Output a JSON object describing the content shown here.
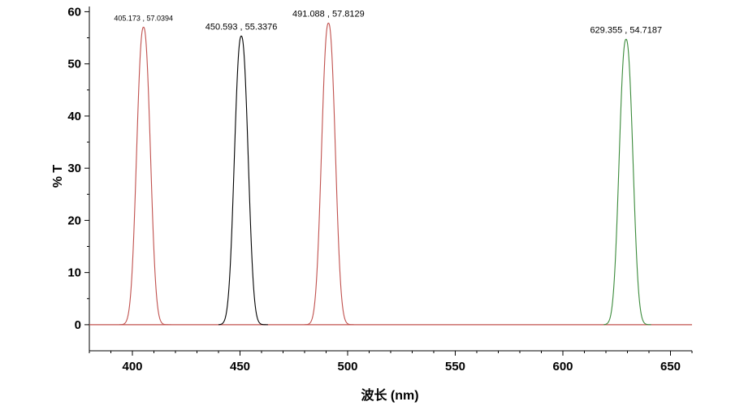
{
  "chart_data": {
    "type": "line",
    "xlabel": "波长 (nm)",
    "ylabel": "% T",
    "xlim": [
      380,
      660
    ],
    "ylim": [
      -5,
      61
    ],
    "xticks": [
      400,
      450,
      500,
      550,
      600,
      650
    ],
    "yticks": [
      0,
      10,
      20,
      30,
      40,
      50,
      60
    ],
    "grid": false,
    "legend": "none",
    "baseline_color": "#c0504d",
    "series": [
      {
        "center": 405.173,
        "peak": 57.0394,
        "sigma": 3.1,
        "color": "#c0504d",
        "label": "405.173 , 57.0394",
        "label_small": true,
        "x_range": [
          394,
          418
        ]
      },
      {
        "center": 450.593,
        "peak": 55.3376,
        "sigma": 3.1,
        "color": "#000000",
        "label": "450.593 , 55.3376",
        "label_small": false,
        "x_range": [
          440,
          463
        ]
      },
      {
        "center": 491.088,
        "peak": 57.8129,
        "sigma": 3.1,
        "color": "#c0504d",
        "label": "491.088 , 57.8129",
        "label_small": false,
        "x_range": [
          480,
          503
        ]
      },
      {
        "center": 629.355,
        "peak": 54.7187,
        "sigma": 3.1,
        "color": "#3a8a3a",
        "label": "629.355 , 54.7187",
        "label_small": false,
        "x_range": [
          619,
          641
        ]
      }
    ]
  }
}
